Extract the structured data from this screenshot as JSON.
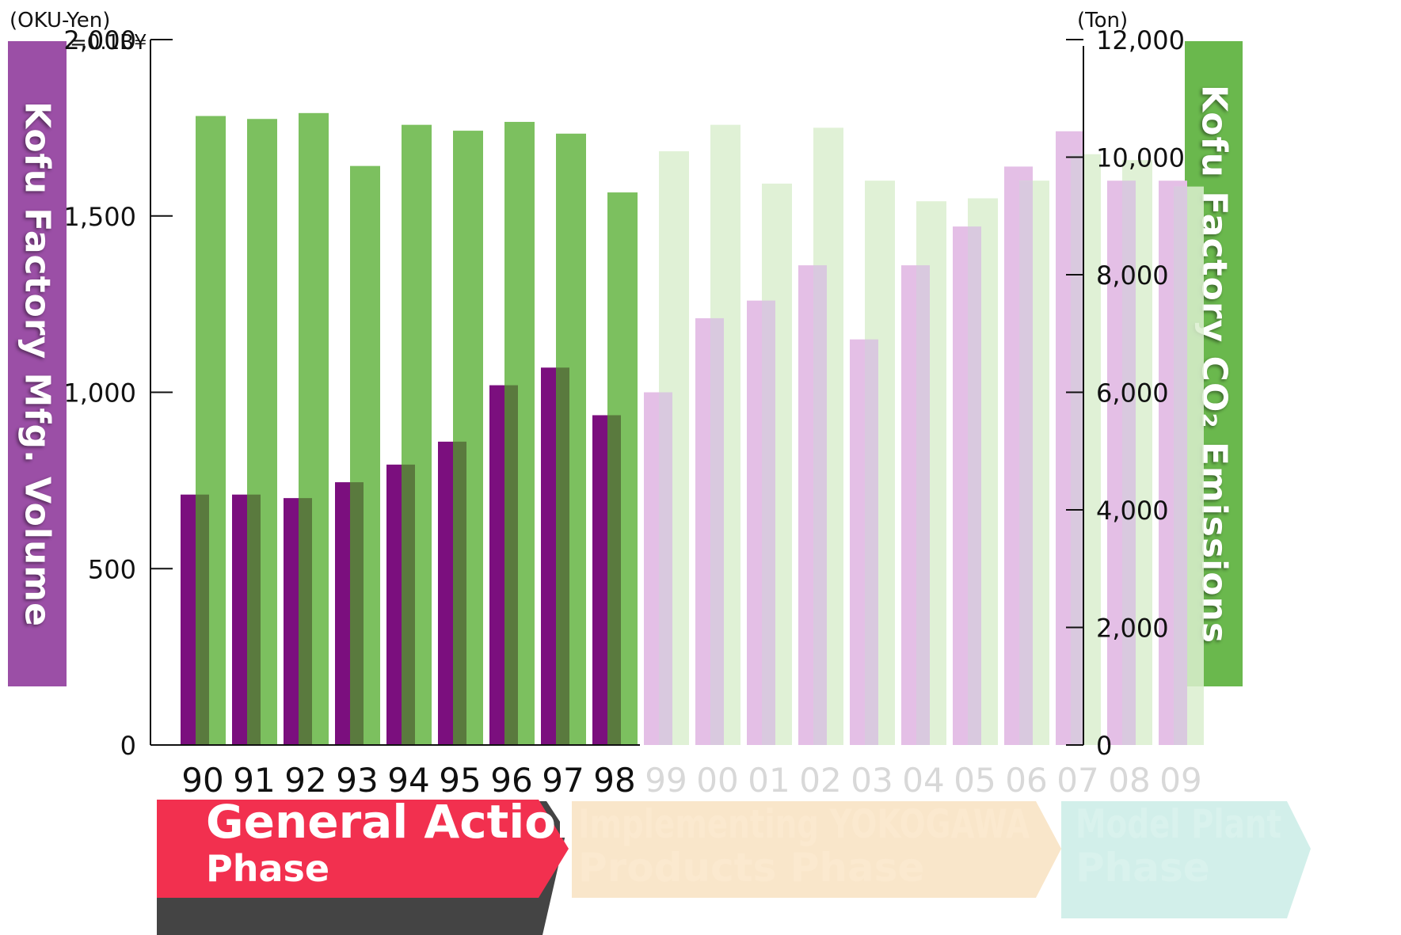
{
  "colors": {
    "volume_solid": "#7b0f7e",
    "volume_faded": "#e4bfe6",
    "co2_solid": "#7cc05f",
    "co2_faded": "#dbeecf",
    "overlap_solid": "#5a7a3e",
    "left_band": "#9b4fa6",
    "right_band": "#6ab84d",
    "phase1": "#f2304f",
    "phase2": "#f7ddb8",
    "phase3": "#bfe8e1"
  },
  "left_axis": {
    "unit_line1": "(OKU-Yen)",
    "unit_line2": "=0.1B¥",
    "title": "Kofu Factory Mfg. Volume"
  },
  "right_axis": {
    "unit": "(Ton)",
    "title": "Kofu Factory CO₂ Emissions"
  },
  "phases": [
    {
      "line1": "General Action",
      "line2": "Phase"
    },
    {
      "line1": "Implementing YOKOGAWA",
      "line2": "Products Phase"
    },
    {
      "line1": "Model Plant",
      "line2": "Phase"
    }
  ],
  "chart_data": {
    "type": "bar",
    "categories": [
      "90",
      "91",
      "92",
      "93",
      "94",
      "95",
      "96",
      "97",
      "98",
      "99",
      "00",
      "01",
      "02",
      "03",
      "04",
      "05",
      "06",
      "07",
      "08",
      "09"
    ],
    "solid_through_index": 8,
    "left_ylim": [
      0,
      2000
    ],
    "left_ticks": [
      "0",
      "500",
      "1,000",
      "1,500",
      "2,000"
    ],
    "left_tick_values": [
      0,
      500,
      1000,
      1500,
      2000
    ],
    "right_ylim": [
      0,
      12000
    ],
    "right_ticks": [
      "0",
      "2,000",
      "4,000",
      "6,000",
      "8,000",
      "10,000",
      "12,000"
    ],
    "right_tick_values": [
      0,
      2000,
      4000,
      6000,
      8000,
      10000,
      12000
    ],
    "series": [
      {
        "name": "Kofu Factory Mfg. Volume",
        "axis": "left",
        "values": [
          710,
          710,
          700,
          745,
          795,
          860,
          1020,
          1070,
          935,
          1000,
          1210,
          1260,
          1360,
          1150,
          1360,
          1470,
          1640,
          1740,
          1600,
          1600
        ]
      },
      {
        "name": "Kofu Factory CO₂ Emissions",
        "axis": "right",
        "values": [
          10700,
          10650,
          10750,
          9850,
          10550,
          10450,
          10600,
          10400,
          9400,
          10100,
          10550,
          9550,
          10500,
          9600,
          9250,
          9300,
          9600,
          10050,
          9950,
          9500
        ]
      }
    ]
  }
}
